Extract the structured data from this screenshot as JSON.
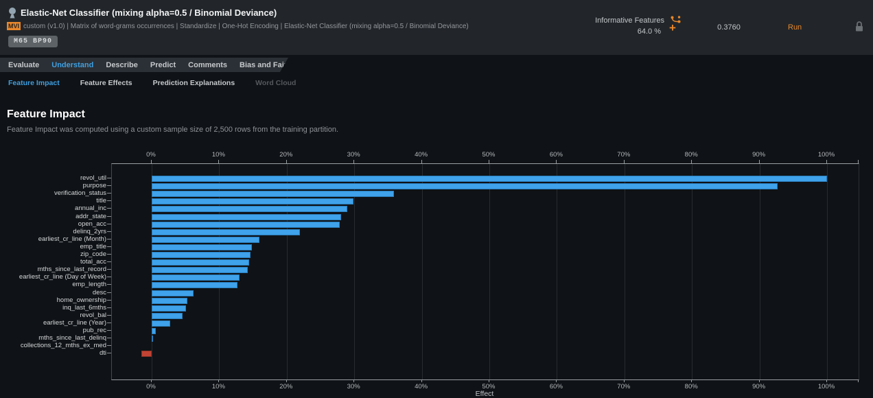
{
  "header": {
    "model_title": "Elastic-Net Classifier (mixing alpha=0.5 / Binomial Deviance)",
    "mvi_badge": "MVI",
    "blueprint": "custom (v1.0) | Matrix of word-grams occurrences | Standardize | One-Hot Encoding | Elastic-Net Classifier (mixing alpha=0.5 / Binomial Deviance)",
    "model_badge": "M65 BP90",
    "feature_list_label": "Informative Features",
    "sample_pct": "64.0 %",
    "metric_value": "0.3760",
    "run_label": "Run",
    "accent_color": "#e8872b"
  },
  "nav": {
    "tabs": [
      {
        "label": "Evaluate",
        "active": false
      },
      {
        "label": "Understand",
        "active": true
      },
      {
        "label": "Describe",
        "active": false
      },
      {
        "label": "Predict",
        "active": false
      },
      {
        "label": "Comments",
        "active": false
      },
      {
        "label": "Bias and Fairness",
        "active": false
      }
    ]
  },
  "subnav": {
    "items": [
      {
        "label": "Feature Impact",
        "state": "active"
      },
      {
        "label": "Feature Effects",
        "state": "normal"
      },
      {
        "label": "Prediction Explanations",
        "state": "normal"
      },
      {
        "label": "Word Cloud",
        "state": "disabled"
      }
    ]
  },
  "main": {
    "title": "Feature Impact",
    "subtitle": "Feature Impact was computed using a custom sample size of 2,500 rows from the training partition."
  },
  "chart_data": {
    "type": "bar",
    "orientation": "horizontal",
    "title": "Feature Impact",
    "xlabel": "Effect",
    "x_ticks": [
      "0%",
      "10%",
      "20%",
      "30%",
      "40%",
      "50%",
      "60%",
      "70%",
      "80%",
      "90%",
      "100%"
    ],
    "xlim": [
      -6,
      104.6
    ],
    "grid": true,
    "bar_color": "#3fa2ea",
    "negative_bar_color": "#c14334",
    "features": [
      {
        "name": "revol_util",
        "value": 100
      },
      {
        "name": "purpose",
        "value": 92.7
      },
      {
        "name": "verification_status",
        "value": 35.9
      },
      {
        "name": "title",
        "value": 29.9
      },
      {
        "name": "annual_inc",
        "value": 29.0
      },
      {
        "name": "addr_state",
        "value": 28.0
      },
      {
        "name": "open_acc",
        "value": 27.8
      },
      {
        "name": "delinq_2yrs",
        "value": 22.0
      },
      {
        "name": "earliest_cr_line (Month)",
        "value": 16.0
      },
      {
        "name": "emp_title",
        "value": 14.8
      },
      {
        "name": "zip_code",
        "value": 14.6
      },
      {
        "name": "total_acc",
        "value": 14.4
      },
      {
        "name": "mths_since_last_record",
        "value": 14.2
      },
      {
        "name": "earliest_cr_line (Day of Week)",
        "value": 13.0
      },
      {
        "name": "emp_length",
        "value": 12.7
      },
      {
        "name": "desc",
        "value": 6.2
      },
      {
        "name": "home_ownership",
        "value": 5.3
      },
      {
        "name": "inq_last_6mths",
        "value": 5.1
      },
      {
        "name": "revol_bal",
        "value": 4.6
      },
      {
        "name": "earliest_cr_line (Year)",
        "value": 2.7
      },
      {
        "name": "pub_rec",
        "value": 0.6
      },
      {
        "name": "mths_since_last_delinq",
        "value": 0.2
      },
      {
        "name": "collections_12_mths_ex_med",
        "value": 0.0
      },
      {
        "name": "dti",
        "value": -1.5
      }
    ]
  }
}
